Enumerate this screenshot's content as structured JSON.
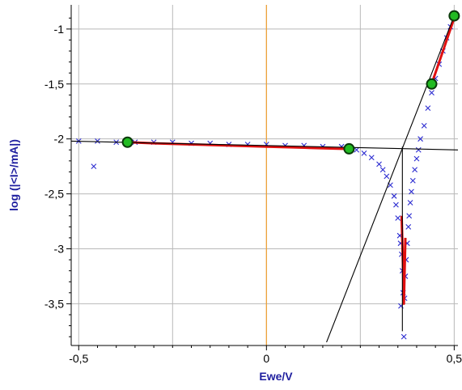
{
  "chart_data": {
    "type": "scatter",
    "title": "",
    "xlabel": "Ewe/V",
    "ylabel": "log (|<I>/mA|)",
    "xlim": [
      -0.52,
      0.51
    ],
    "ylim": [
      -3.88,
      -0.78
    ],
    "x_ticks": [
      -0.5,
      0,
      0.5
    ],
    "x_tick_labels": [
      "-0,5",
      "0",
      "0,5"
    ],
    "y_ticks": [
      -1,
      -1.5,
      -2,
      -2.5,
      -3,
      -3.5
    ],
    "y_tick_labels": [
      "-1",
      "-1,5",
      "-2",
      "-2,5",
      "-3",
      "-3,5"
    ],
    "grid": true,
    "zero_line_x": 0,
    "colors": {
      "measured": "#2b2bd0",
      "fit": "#e01010",
      "tafel_lines": "#000000",
      "fit_points": "#22bb22",
      "zero_line": "#f0a030",
      "grid": "#b8b8b8"
    },
    "series": [
      {
        "name": "",
        "style": "markers-x",
        "x": [
          -0.46,
          -0.5,
          -0.45,
          -0.4,
          -0.35,
          -0.3,
          -0.25,
          -0.2,
          -0.15,
          -0.1,
          -0.05,
          0.0,
          0.05,
          0.1,
          0.15,
          0.2,
          0.22,
          0.24,
          0.26,
          0.28,
          0.3,
          0.31,
          0.32,
          0.33,
          0.34,
          0.345,
          0.35,
          0.355,
          0.36,
          0.362,
          0.364,
          0.366,
          0.368,
          0.37,
          0.372,
          0.375,
          0.378,
          0.38,
          0.383,
          0.386,
          0.39,
          0.395,
          0.4,
          0.405,
          0.41,
          0.42,
          0.43,
          0.44,
          0.45,
          0.46,
          0.47,
          0.48,
          0.49,
          0.5,
          0.358,
          0.357
        ],
        "y": [
          -2.25,
          -2.02,
          -2.02,
          -2.03,
          -2.03,
          -2.03,
          -2.03,
          -2.04,
          -2.04,
          -2.05,
          -2.05,
          -2.05,
          -2.06,
          -2.06,
          -2.07,
          -2.07,
          -2.08,
          -2.1,
          -2.13,
          -2.17,
          -2.23,
          -2.28,
          -2.34,
          -2.42,
          -2.52,
          -2.6,
          -2.72,
          -2.88,
          -3.05,
          -3.2,
          -3.4,
          -3.8,
          -3.45,
          -3.25,
          -3.1,
          -2.95,
          -2.8,
          -2.7,
          -2.58,
          -2.48,
          -2.38,
          -2.28,
          -2.18,
          -2.1,
          -2.0,
          -1.88,
          -1.72,
          -1.58,
          -1.45,
          -1.32,
          -1.2,
          -1.08,
          -0.98,
          -0.88,
          -3.52,
          -2.95
        ]
      },
      {
        "name": "",
        "style": "line",
        "x": [
          -0.37,
          -0.3,
          -0.2,
          -0.1,
          0.0,
          0.1,
          0.2,
          0.22
        ],
        "y": [
          -2.03,
          -2.04,
          -2.05,
          -2.06,
          -2.07,
          -2.08,
          -2.09,
          -2.09
        ]
      },
      {
        "name": "",
        "style": "line",
        "x": [
          0.44,
          0.46,
          0.48,
          0.5
        ],
        "y": [
          -1.5,
          -1.3,
          -1.1,
          -0.9
        ]
      },
      {
        "name": "",
        "style": "line",
        "x": [
          0.36,
          0.362,
          0.364,
          0.366,
          0.368,
          0.37
        ],
        "y": [
          -2.7,
          -2.95,
          -3.2,
          -3.5,
          -3.2,
          -2.9
        ]
      },
      {
        "name": "",
        "style": "tafel-line",
        "x": [
          -0.52,
          0.51
        ],
        "y": [
          -2.02,
          -2.1
        ]
      },
      {
        "name": "",
        "style": "tafel-line",
        "x": [
          0.16,
          0.5
        ],
        "y": [
          -3.85,
          -0.88
        ]
      },
      {
        "name": "",
        "style": "tafel-line",
        "x": [
          0.362,
          0.362
        ],
        "y": [
          -2.07,
          -3.75
        ]
      },
      {
        "name": "",
        "style": "fit-points",
        "x": [
          -0.37,
          0.22,
          0.44,
          0.5
        ],
        "y": [
          -2.03,
          -2.09,
          -1.5,
          -0.88
        ]
      }
    ]
  }
}
